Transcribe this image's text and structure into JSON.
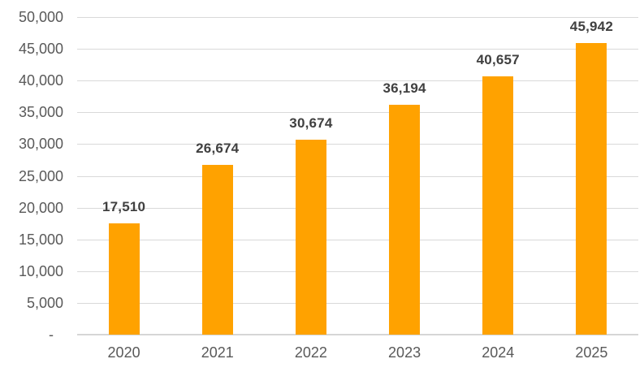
{
  "chart_data": {
    "type": "bar",
    "title": "",
    "xlabel": "",
    "ylabel": "",
    "categories": [
      "2020",
      "2021",
      "2022",
      "2023",
      "2024",
      "2025"
    ],
    "values": [
      17510,
      26674,
      30674,
      36194,
      40657,
      45942
    ],
    "value_labels": [
      "17,510",
      "26,674",
      "30,674",
      "36,194",
      "40,657",
      "45,942"
    ],
    "ylim": [
      0,
      50000
    ],
    "y_tick_step": 5000,
    "y_tick_labels": [
      "-",
      "5,000",
      "10,000",
      "15,000",
      "20,000",
      "25,000",
      "30,000",
      "35,000",
      "40,000",
      "45,000",
      "50,000"
    ],
    "grid": true,
    "legend": "none",
    "colors": {
      "bar": "#FFA200",
      "data_label": "#404040",
      "axis_text": "#595959",
      "gridline": "#D9D9D9",
      "axis_line": "#D6D6D6",
      "background": "#FFFFFF"
    }
  }
}
